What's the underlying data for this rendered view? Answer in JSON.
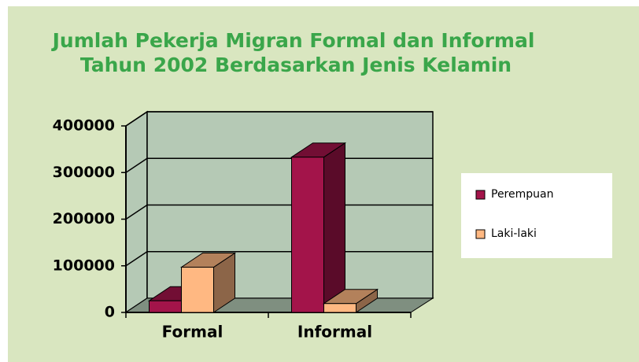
{
  "chart_data": {
    "type": "bar3d",
    "title": [
      "Jumlah Pekerja Migran Formal dan Informal",
      "Tahun 2002 Berdasarkan Jenis Kelamin"
    ],
    "categories": [
      "Formal",
      "Informal"
    ],
    "series": [
      {
        "name": "Perempuan",
        "color": "#a3144a",
        "values": [
          25000,
          333000
        ]
      },
      {
        "name": "Laki-laki",
        "color": "#ffb882",
        "values": [
          97000,
          19000
        ]
      }
    ],
    "ylim": [
      0,
      400000
    ],
    "yticks": [
      0,
      100000,
      200000,
      300000,
      400000
    ],
    "grid": true,
    "legend": "right"
  }
}
